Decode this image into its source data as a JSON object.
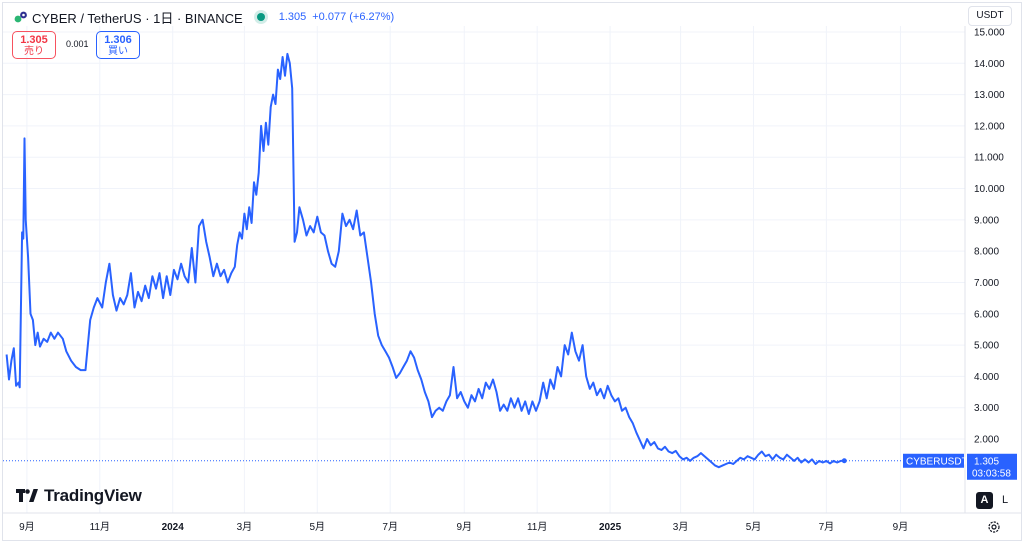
{
  "header": {
    "symbol": "CYBER / TetherUS · 1日 · BINANCE",
    "last": "1.305",
    "change": "+0.077 (+6.27%)"
  },
  "trade": {
    "sell_price": "1.305",
    "sell_label": "売り",
    "spread": "0.001",
    "buy_price": "1.306",
    "buy_label": "買い"
  },
  "currency_button": "USDT",
  "price_tag": {
    "symbol": "CYBERUSDT",
    "price": "1.305",
    "countdown": "03:03:58"
  },
  "brand": "TradingView",
  "scale_buttons": {
    "auto": "A",
    "log": "L"
  },
  "colors": {
    "line": "#2962ff",
    "price_tag": "#2962ff",
    "sell": "#f23645",
    "buy": "#2962ff",
    "live_dot": "#089981"
  },
  "icons": {
    "logo": "cyber-logo-icon",
    "live": "live-dot-icon",
    "settings": "gear-icon"
  },
  "chart_data": {
    "type": "line",
    "x_unit": "date",
    "y_ticks": [
      "15.000",
      "14.000",
      "13.000",
      "12.000",
      "11.000",
      "10.000",
      "9.000",
      "8.000",
      "7.000",
      "6.000",
      "5.000",
      "4.000",
      "3.000",
      "2.000"
    ],
    "ylim": [
      0.9,
      15.0
    ],
    "x_ticks": [
      {
        "label": "9月",
        "date": "2023-09-01",
        "bold": false
      },
      {
        "label": "11月",
        "date": "2023-11-01",
        "bold": false
      },
      {
        "label": "2024",
        "date": "2024-01-01",
        "bold": true
      },
      {
        "label": "3月",
        "date": "2024-03-01",
        "bold": false
      },
      {
        "label": "5月",
        "date": "2024-05-01",
        "bold": false
      },
      {
        "label": "7月",
        "date": "2024-07-01",
        "bold": false
      },
      {
        "label": "9月",
        "date": "2024-09-01",
        "bold": false
      },
      {
        "label": "11月",
        "date": "2024-11-01",
        "bold": false
      },
      {
        "label": "2025",
        "date": "2025-01-01",
        "bold": true
      },
      {
        "label": "3月",
        "date": "2025-03-01",
        "bold": false
      },
      {
        "label": "5月",
        "date": "2025-05-01",
        "bold": false
      },
      {
        "label": "7月",
        "date": "2025-07-01",
        "bold": false
      },
      {
        "label": "9月",
        "date": "2025-09-01",
        "bold": false
      }
    ],
    "xlim": [
      "2023-08-12",
      "2025-10-25"
    ],
    "last_price": 1.305,
    "series": [
      {
        "color": "#2962ff",
        "points": [
          [
            "2023-08-15",
            4.7
          ],
          [
            "2023-08-17",
            3.9
          ],
          [
            "2023-08-19",
            4.5
          ],
          [
            "2023-08-21",
            4.9
          ],
          [
            "2023-08-23",
            3.7
          ],
          [
            "2023-08-25",
            3.8
          ],
          [
            "2023-08-26",
            3.65
          ],
          [
            "2023-08-28",
            8.6
          ],
          [
            "2023-08-29",
            8.4
          ],
          [
            "2023-08-30",
            11.6
          ],
          [
            "2023-08-31",
            9.0
          ],
          [
            "2023-09-02",
            7.8
          ],
          [
            "2023-09-04",
            6.0
          ],
          [
            "2023-09-06",
            5.8
          ],
          [
            "2023-09-08",
            5.0
          ],
          [
            "2023-09-10",
            5.4
          ],
          [
            "2023-09-12",
            4.95
          ],
          [
            "2023-09-15",
            5.2
          ],
          [
            "2023-09-18",
            5.1
          ],
          [
            "2023-09-21",
            5.4
          ],
          [
            "2023-09-24",
            5.2
          ],
          [
            "2023-09-27",
            5.4
          ],
          [
            "2023-10-01",
            5.2
          ],
          [
            "2023-10-04",
            4.8
          ],
          [
            "2023-10-08",
            4.5
          ],
          [
            "2023-10-12",
            4.3
          ],
          [
            "2023-10-16",
            4.2
          ],
          [
            "2023-10-20",
            4.2
          ],
          [
            "2023-10-24",
            5.8
          ],
          [
            "2023-10-27",
            6.2
          ],
          [
            "2023-10-30",
            6.5
          ],
          [
            "2023-11-03",
            6.2
          ],
          [
            "2023-11-06",
            7.0
          ],
          [
            "2023-11-09",
            7.6
          ],
          [
            "2023-11-12",
            6.6
          ],
          [
            "2023-11-15",
            6.1
          ],
          [
            "2023-11-18",
            6.5
          ],
          [
            "2023-11-21",
            6.3
          ],
          [
            "2023-11-24",
            6.6
          ],
          [
            "2023-11-27",
            7.3
          ],
          [
            "2023-11-30",
            6.2
          ],
          [
            "2023-12-03",
            6.7
          ],
          [
            "2023-12-06",
            6.4
          ],
          [
            "2023-12-09",
            6.9
          ],
          [
            "2023-12-12",
            6.5
          ],
          [
            "2023-12-15",
            7.2
          ],
          [
            "2023-12-18",
            6.8
          ],
          [
            "2023-12-21",
            7.3
          ],
          [
            "2023-12-24",
            6.5
          ],
          [
            "2023-12-27",
            7.2
          ],
          [
            "2023-12-30",
            6.6
          ],
          [
            "2024-01-02",
            7.4
          ],
          [
            "2024-01-05",
            7.1
          ],
          [
            "2024-01-08",
            7.6
          ],
          [
            "2024-01-11",
            7.2
          ],
          [
            "2024-01-14",
            7.0
          ],
          [
            "2024-01-17",
            8.1
          ],
          [
            "2024-01-20",
            7.0
          ],
          [
            "2024-01-23",
            8.8
          ],
          [
            "2024-01-26",
            9.0
          ],
          [
            "2024-01-29",
            8.3
          ],
          [
            "2024-02-01",
            7.8
          ],
          [
            "2024-02-04",
            7.2
          ],
          [
            "2024-02-07",
            7.6
          ],
          [
            "2024-02-10",
            7.2
          ],
          [
            "2024-02-13",
            7.4
          ],
          [
            "2024-02-16",
            7.0
          ],
          [
            "2024-02-19",
            7.3
          ],
          [
            "2024-02-22",
            7.5
          ],
          [
            "2024-02-24",
            8.2
          ],
          [
            "2024-02-26",
            8.6
          ],
          [
            "2024-02-28",
            8.4
          ],
          [
            "2024-03-01",
            9.2
          ],
          [
            "2024-03-03",
            8.7
          ],
          [
            "2024-03-05",
            9.4
          ],
          [
            "2024-03-07",
            8.9
          ],
          [
            "2024-03-09",
            10.2
          ],
          [
            "2024-03-11",
            9.8
          ],
          [
            "2024-03-13",
            10.5
          ],
          [
            "2024-03-15",
            12.0
          ],
          [
            "2024-03-17",
            11.2
          ],
          [
            "2024-03-19",
            12.1
          ],
          [
            "2024-03-21",
            11.4
          ],
          [
            "2024-03-23",
            12.6
          ],
          [
            "2024-03-25",
            13.0
          ],
          [
            "2024-03-27",
            12.7
          ],
          [
            "2024-03-29",
            13.8
          ],
          [
            "2024-03-31",
            13.5
          ],
          [
            "2024-04-02",
            14.2
          ],
          [
            "2024-04-04",
            13.6
          ],
          [
            "2024-04-06",
            14.3
          ],
          [
            "2024-04-08",
            14.0
          ],
          [
            "2024-04-10",
            13.2
          ],
          [
            "2024-04-12",
            8.3
          ],
          [
            "2024-04-14",
            8.6
          ],
          [
            "2024-04-16",
            9.4
          ],
          [
            "2024-04-19",
            9.0
          ],
          [
            "2024-04-22",
            8.5
          ],
          [
            "2024-04-25",
            8.8
          ],
          [
            "2024-04-28",
            8.6
          ],
          [
            "2024-05-01",
            9.1
          ],
          [
            "2024-05-04",
            8.6
          ],
          [
            "2024-05-07",
            8.5
          ],
          [
            "2024-05-10",
            8.0
          ],
          [
            "2024-05-13",
            7.6
          ],
          [
            "2024-05-16",
            7.5
          ],
          [
            "2024-05-19",
            8.0
          ],
          [
            "2024-05-22",
            9.2
          ],
          [
            "2024-05-25",
            8.8
          ],
          [
            "2024-05-28",
            9.0
          ],
          [
            "2024-05-31",
            8.7
          ],
          [
            "2024-06-03",
            9.3
          ],
          [
            "2024-06-06",
            8.5
          ],
          [
            "2024-06-09",
            8.6
          ],
          [
            "2024-06-12",
            7.8
          ],
          [
            "2024-06-15",
            7.0
          ],
          [
            "2024-06-18",
            6.0
          ],
          [
            "2024-06-21",
            5.3
          ],
          [
            "2024-06-24",
            5.0
          ],
          [
            "2024-06-27",
            4.8
          ],
          [
            "2024-06-30",
            4.6
          ],
          [
            "2024-07-03",
            4.3
          ],
          [
            "2024-07-06",
            3.95
          ],
          [
            "2024-07-09",
            4.1
          ],
          [
            "2024-07-12",
            4.3
          ],
          [
            "2024-07-15",
            4.5
          ],
          [
            "2024-07-18",
            4.8
          ],
          [
            "2024-07-21",
            4.6
          ],
          [
            "2024-07-24",
            4.2
          ],
          [
            "2024-07-27",
            3.9
          ],
          [
            "2024-07-30",
            3.5
          ],
          [
            "2024-08-02",
            3.2
          ],
          [
            "2024-08-05",
            2.7
          ],
          [
            "2024-08-08",
            2.9
          ],
          [
            "2024-08-11",
            3.0
          ],
          [
            "2024-08-14",
            2.9
          ],
          [
            "2024-08-17",
            3.2
          ],
          [
            "2024-08-20",
            3.4
          ],
          [
            "2024-08-23",
            4.3
          ],
          [
            "2024-08-26",
            3.3
          ],
          [
            "2024-08-29",
            3.5
          ],
          [
            "2024-09-01",
            3.2
          ],
          [
            "2024-09-04",
            3.0
          ],
          [
            "2024-09-07",
            3.4
          ],
          [
            "2024-09-10",
            3.2
          ],
          [
            "2024-09-13",
            3.6
          ],
          [
            "2024-09-16",
            3.3
          ],
          [
            "2024-09-19",
            3.8
          ],
          [
            "2024-09-22",
            3.6
          ],
          [
            "2024-09-25",
            3.9
          ],
          [
            "2024-09-28",
            3.5
          ],
          [
            "2024-10-01",
            2.9
          ],
          [
            "2024-10-04",
            3.1
          ],
          [
            "2024-10-07",
            2.9
          ],
          [
            "2024-10-10",
            3.3
          ],
          [
            "2024-10-13",
            3.0
          ],
          [
            "2024-10-16",
            3.3
          ],
          [
            "2024-10-19",
            2.9
          ],
          [
            "2024-10-22",
            3.2
          ],
          [
            "2024-10-25",
            2.8
          ],
          [
            "2024-10-28",
            3.2
          ],
          [
            "2024-10-31",
            2.9
          ],
          [
            "2024-11-03",
            3.2
          ],
          [
            "2024-11-06",
            3.8
          ],
          [
            "2024-11-09",
            3.3
          ],
          [
            "2024-11-12",
            3.9
          ],
          [
            "2024-11-15",
            3.6
          ],
          [
            "2024-11-18",
            4.3
          ],
          [
            "2024-11-21",
            4.0
          ],
          [
            "2024-11-24",
            5.0
          ],
          [
            "2024-11-27",
            4.7
          ],
          [
            "2024-11-30",
            5.4
          ],
          [
            "2024-12-03",
            4.8
          ],
          [
            "2024-12-06",
            4.5
          ],
          [
            "2024-12-09",
            5.0
          ],
          [
            "2024-12-12",
            4.0
          ],
          [
            "2024-12-15",
            3.6
          ],
          [
            "2024-12-18",
            3.8
          ],
          [
            "2024-12-21",
            3.4
          ],
          [
            "2024-12-24",
            3.6
          ],
          [
            "2024-12-27",
            3.3
          ],
          [
            "2024-12-30",
            3.7
          ],
          [
            "2025-01-02",
            3.4
          ],
          [
            "2025-01-05",
            3.2
          ],
          [
            "2025-01-08",
            3.3
          ],
          [
            "2025-01-11",
            2.9
          ],
          [
            "2025-01-14",
            3.0
          ],
          [
            "2025-01-17",
            2.7
          ],
          [
            "2025-01-20",
            2.5
          ],
          [
            "2025-01-23",
            2.2
          ],
          [
            "2025-01-26",
            1.95
          ],
          [
            "2025-01-29",
            1.7
          ],
          [
            "2025-02-01",
            2.0
          ],
          [
            "2025-02-04",
            1.8
          ],
          [
            "2025-02-07",
            1.9
          ],
          [
            "2025-02-10",
            1.7
          ],
          [
            "2025-02-13",
            1.65
          ],
          [
            "2025-02-16",
            1.75
          ],
          [
            "2025-02-19",
            1.6
          ],
          [
            "2025-02-22",
            1.55
          ],
          [
            "2025-02-25",
            1.62
          ],
          [
            "2025-02-28",
            1.45
          ],
          [
            "2025-03-03",
            1.35
          ],
          [
            "2025-03-06",
            1.4
          ],
          [
            "2025-03-09",
            1.3
          ],
          [
            "2025-03-12",
            1.4
          ],
          [
            "2025-03-15",
            1.45
          ],
          [
            "2025-03-18",
            1.55
          ],
          [
            "2025-03-21",
            1.45
          ],
          [
            "2025-03-24",
            1.35
          ],
          [
            "2025-03-27",
            1.25
          ],
          [
            "2025-03-30",
            1.15
          ],
          [
            "2025-04-02",
            1.1
          ],
          [
            "2025-04-05",
            1.15
          ],
          [
            "2025-04-08",
            1.2
          ],
          [
            "2025-04-11",
            1.25
          ],
          [
            "2025-04-14",
            1.2
          ],
          [
            "2025-04-17",
            1.3
          ],
          [
            "2025-04-20",
            1.4
          ],
          [
            "2025-04-23",
            1.35
          ],
          [
            "2025-04-26",
            1.45
          ],
          [
            "2025-04-29",
            1.4
          ],
          [
            "2025-05-02",
            1.35
          ],
          [
            "2025-05-05",
            1.5
          ],
          [
            "2025-05-08",
            1.6
          ],
          [
            "2025-05-11",
            1.45
          ],
          [
            "2025-05-14",
            1.5
          ],
          [
            "2025-05-17",
            1.35
          ],
          [
            "2025-05-20",
            1.5
          ],
          [
            "2025-05-23",
            1.4
          ],
          [
            "2025-05-26",
            1.35
          ],
          [
            "2025-05-29",
            1.5
          ],
          [
            "2025-06-01",
            1.4
          ],
          [
            "2025-06-04",
            1.3
          ],
          [
            "2025-06-07",
            1.4
          ],
          [
            "2025-06-10",
            1.25
          ],
          [
            "2025-06-13",
            1.35
          ],
          [
            "2025-06-16",
            1.25
          ],
          [
            "2025-06-19",
            1.35
          ],
          [
            "2025-06-22",
            1.2
          ],
          [
            "2025-06-25",
            1.3
          ],
          [
            "2025-06-28",
            1.25
          ],
          [
            "2025-07-01",
            1.3
          ],
          [
            "2025-07-04",
            1.22
          ],
          [
            "2025-07-07",
            1.3
          ],
          [
            "2025-07-10",
            1.25
          ],
          [
            "2025-07-13",
            1.3
          ],
          [
            "2025-07-16",
            1.305
          ]
        ]
      }
    ]
  }
}
